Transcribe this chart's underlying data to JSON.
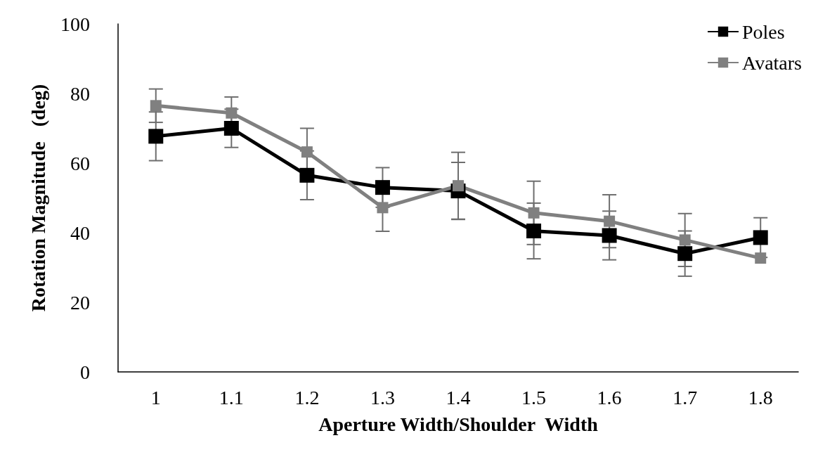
{
  "chart_data": {
    "type": "line",
    "xlabel": "Aperture Width/Shoulder  Width",
    "ylabel": "Rotation Magnitude   (deg)",
    "categories": [
      "1",
      "1.1",
      "1.2",
      "1.3",
      "1.4",
      "1.5",
      "1.6",
      "1.7",
      "1.8"
    ],
    "series": [
      {
        "name": "Poles",
        "color": "#000000",
        "values": [
          67.7,
          70,
          56.5,
          53,
          52,
          40.5,
          39.2,
          34,
          38.6
        ],
        "errors": [
          7,
          5.5,
          7,
          5.7,
          8.2,
          8,
          7,
          6.5,
          5.7
        ]
      },
      {
        "name": "Avatars",
        "color": "#808080",
        "values": [
          76.5,
          74.4,
          63.2,
          47.2,
          53.5,
          45.7,
          43.3,
          37.9,
          32.7
        ],
        "errors": [
          4.8,
          4.6,
          6.8,
          6.8,
          9.6,
          9.1,
          7.6,
          7.6,
          null
        ]
      }
    ],
    "ylim": [
      0,
      100
    ],
    "yticks": [
      0,
      20,
      40,
      60,
      80,
      100
    ],
    "grid": false,
    "legend": "top right",
    "marker": "square",
    "line_style": "solid"
  }
}
